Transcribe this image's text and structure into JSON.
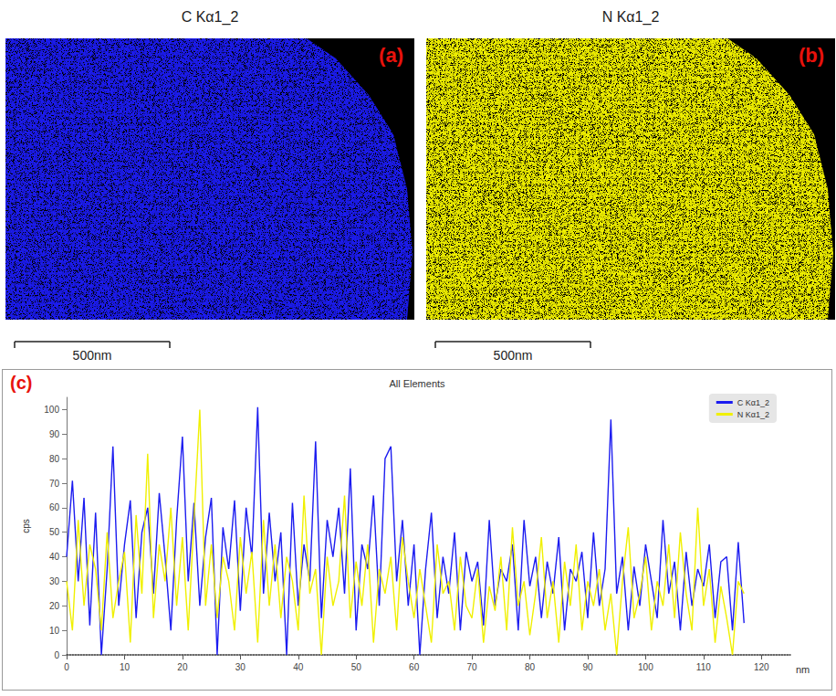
{
  "maps": [
    {
      "letter": "(a)",
      "title": "C Kα1_2",
      "color": "#1c1cf0",
      "scale_bar": "500nm"
    },
    {
      "letter": "(b)",
      "title": "N Kα1_2",
      "color": "#f0f000",
      "scale_bar": "500nm"
    }
  ],
  "chart_data": {
    "letter": "(c)",
    "type": "line",
    "title": "All Elements",
    "x_label": "nm",
    "y_label": "cps",
    "x": [
      0,
      1,
      2,
      3,
      4,
      5,
      6,
      7,
      8,
      9,
      10,
      11,
      12,
      13,
      14,
      15,
      16,
      17,
      18,
      19,
      20,
      21,
      22,
      23,
      24,
      25,
      26,
      27,
      28,
      29,
      30,
      31,
      32,
      33,
      34,
      35,
      36,
      37,
      38,
      39,
      40,
      41,
      42,
      43,
      44,
      45,
      46,
      47,
      48,
      49,
      50,
      51,
      52,
      53,
      54,
      55,
      56,
      57,
      58,
      59,
      60,
      61,
      62,
      63,
      64,
      65,
      66,
      67,
      68,
      69,
      70,
      71,
      72,
      73,
      74,
      75,
      76,
      77,
      78,
      79,
      80,
      81,
      82,
      83,
      84,
      85,
      86,
      87,
      88,
      89,
      90,
      91,
      92,
      93,
      94,
      95,
      96,
      97,
      98,
      99,
      100,
      101,
      102,
      103,
      104,
      105,
      106,
      107,
      108,
      109,
      110,
      111,
      112,
      113,
      114,
      115,
      116,
      117
    ],
    "series": [
      {
        "name": "C Kα1_2",
        "color": "#1c1cf0",
        "values": [
          40,
          71,
          30,
          64,
          12,
          58,
          0,
          35,
          85,
          20,
          45,
          63,
          15,
          50,
          60,
          25,
          66,
          40,
          10,
          55,
          89,
          30,
          62,
          20,
          48,
          64,
          0,
          52,
          35,
          63,
          18,
          60,
          40,
          101,
          25,
          58,
          30,
          50,
          0,
          62,
          20,
          45,
          30,
          87,
          15,
          55,
          40,
          60,
          25,
          76,
          10,
          45,
          35,
          65,
          20,
          80,
          85,
          30,
          55,
          20,
          45,
          0,
          35,
          58,
          15,
          40,
          25,
          50,
          10,
          42,
          30,
          38,
          12,
          55,
          20,
          35,
          30,
          45,
          10,
          55,
          28,
          40,
          15,
          38,
          25,
          48,
          10,
          35,
          30,
          42,
          15,
          50,
          20,
          35,
          96,
          25,
          40,
          10,
          36,
          20,
          45,
          30,
          15,
          55,
          25,
          38,
          10,
          42,
          20,
          35,
          28,
          45,
          15,
          38,
          40,
          10,
          46,
          13
        ]
      },
      {
        "name": "N Kα1_2",
        "color": "#f0f000",
        "values": [
          30,
          10,
          55,
          20,
          45,
          35,
          10,
          50,
          15,
          30,
          42,
          5,
          57,
          25,
          82,
          15,
          45,
          30,
          60,
          20,
          48,
          10,
          55,
          100,
          20,
          45,
          15,
          40,
          30,
          10,
          48,
          25,
          42,
          5,
          55,
          20,
          45,
          15,
          40,
          30,
          10,
          65,
          25,
          35,
          0,
          40,
          20,
          30,
          65,
          15,
          38,
          20,
          45,
          5,
          35,
          25,
          40,
          10,
          48,
          30,
          15,
          35,
          20,
          5,
          45,
          25,
          30,
          10,
          40,
          20,
          15,
          35,
          5,
          28,
          18,
          40,
          10,
          52,
          20,
          30,
          8,
          25,
          48,
          15,
          30,
          5,
          38,
          20,
          45,
          10,
          30,
          20,
          35,
          10,
          25,
          0,
          30,
          52,
          15,
          25,
          40,
          10,
          30,
          20,
          45,
          15,
          50,
          25,
          10,
          60,
          20,
          35,
          5,
          28,
          15,
          0,
          30,
          25
        ]
      }
    ],
    "xlim": [
      0,
      125
    ],
    "xticks": [
      0,
      10,
      20,
      30,
      40,
      50,
      60,
      70,
      80,
      90,
      100,
      110,
      120
    ],
    "ylim": [
      0,
      105
    ],
    "yticks": [
      0,
      10,
      20,
      30,
      40,
      50,
      60,
      70,
      80,
      90,
      100
    ],
    "legend": "upper right",
    "grid": false
  }
}
